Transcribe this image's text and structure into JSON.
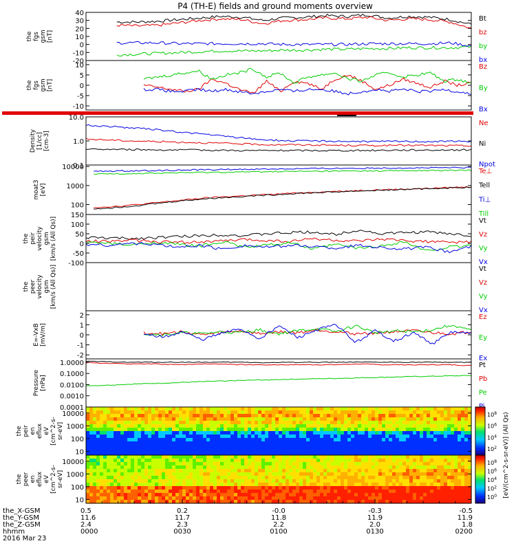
{
  "title": "P4 (TH-E) fields and ground moments overview",
  "date_label": "2016 Mar 23",
  "colors": {
    "black": "#000000",
    "red": "#e00000",
    "green": "#00cc00",
    "blue": "#0000e0"
  },
  "colorbar": {
    "label": "[eV/(cm^2-s-sr-eV)] (All Qs)",
    "upper_ticks": [
      "10^8",
      "10^6",
      "10^4",
      "10^2"
    ],
    "lower_ticks": [
      "10^8",
      "10^6",
      "10^4",
      "10^2",
      "10^0"
    ]
  },
  "xaxis": {
    "time_ticks": [
      "0000",
      "0030",
      "0100",
      "0130",
      "0200"
    ],
    "row_labels": [
      "the_X-GSM",
      "the_Y-GSM",
      "the_Z-GSM",
      "hhmm"
    ],
    "rows": [
      [
        "0.5",
        "0.2",
        "-0.0",
        "-0.3",
        "-0.5"
      ],
      [
        "11.6",
        "11.7",
        "11.8",
        "11.9",
        "11.9"
      ],
      [
        "2.4",
        "2.3",
        "2.2",
        "2.0",
        "1.8"
      ],
      [
        "0000",
        "0030",
        "0100",
        "0130",
        "0200"
      ]
    ]
  },
  "chart_data": [
    {
      "type": "line",
      "ylabel": [
        "the",
        "fgs",
        "gsm",
        "[nT]"
      ],
      "ylim": [
        -20,
        40
      ],
      "ticks": [
        "40",
        "30",
        "20",
        "10",
        "0",
        "-10",
        "-20"
      ],
      "tick_values": [
        40,
        30,
        20,
        10,
        0,
        -10,
        -20
      ],
      "series": [
        {
          "name": "Bt",
          "color": "black",
          "values": [
            28,
            28,
            29,
            31,
            33,
            35,
            34,
            30,
            33,
            34,
            36,
            35,
            37,
            33,
            35,
            34,
            31,
            25
          ]
        },
        {
          "name": "bz",
          "color": "red",
          "values": [
            24,
            23,
            24,
            27,
            30,
            32,
            31,
            26,
            30,
            31,
            33,
            32,
            34,
            30,
            32,
            31,
            28,
            20
          ]
        },
        {
          "name": "by",
          "color": "green",
          "values": [
            -13,
            -12,
            -11,
            -10,
            -9,
            -8,
            -8,
            -8,
            -7,
            -7,
            -6,
            -6,
            -5,
            -5,
            -4,
            -4,
            -4,
            -3
          ]
        },
        {
          "name": "bx",
          "color": "blue",
          "values": [
            2,
            2,
            2,
            1,
            1,
            1,
            1,
            1,
            0,
            0,
            0,
            0,
            1,
            1,
            1,
            1,
            2,
            -2
          ]
        }
      ],
      "series_start": 0.08
    },
    {
      "type": "line",
      "ylabel": [
        "the",
        "fgs",
        "gsm",
        "[nT]"
      ],
      "ylim": [
        -12,
        12
      ],
      "ticks": [
        "10",
        "5",
        "0",
        "-5",
        "-10"
      ],
      "tick_values": [
        10,
        5,
        0,
        -5,
        -10
      ],
      "series": [
        {
          "name": "Bz",
          "color": "red",
          "values": [
            0,
            -1,
            -2,
            -3,
            -2,
            3,
            1,
            -2,
            -4,
            2,
            -3,
            2,
            1,
            -2,
            3,
            5,
            2,
            -2,
            0,
            3,
            1,
            -1,
            2,
            0,
            1
          ]
        },
        {
          "name": "By",
          "color": "green",
          "values": [
            3,
            4,
            5,
            6,
            7,
            3,
            5,
            6,
            8,
            4,
            6,
            1,
            4,
            5,
            6,
            3,
            2,
            5,
            6,
            4,
            5,
            6,
            2,
            3,
            1
          ]
        },
        {
          "name": "Bx",
          "color": "blue",
          "values": [
            -2,
            -2,
            -3,
            -3,
            -2,
            -3,
            -2,
            -3,
            -4,
            -3,
            -2,
            -3,
            -2,
            -2,
            -3,
            -4,
            -3,
            -2,
            -3,
            -2,
            -3,
            -3,
            -2,
            -3,
            -4
          ]
        }
      ],
      "series_start": 0.15
    },
    {
      "type": "line",
      "ylabel": [
        "Density",
        "[1/cc]",
        "[cm-3]"
      ],
      "ylim": [
        0.1,
        10
      ],
      "log": true,
      "ticks": [
        "10.0",
        "1.0",
        "0.1"
      ],
      "tick_values": [
        10,
        1,
        0.1
      ],
      "series": [
        {
          "name": "Ne",
          "color": "red",
          "values": [
            1.2,
            1.1,
            1.0,
            0.95,
            0.9,
            0.85,
            0.8,
            0.75,
            0.7,
            0.7,
            0.68,
            0.66,
            0.65,
            0.65,
            0.66,
            0.65,
            0.64,
            0.63
          ]
        },
        {
          "name": "Ni",
          "color": "black",
          "values": [
            0.45,
            0.45,
            0.44,
            0.43,
            0.42,
            0.42,
            0.41,
            0.4,
            0.4,
            0.4,
            0.4,
            0.4,
            0.4,
            0.41,
            0.42,
            0.42,
            0.42,
            0.43
          ]
        },
        {
          "name": "Npot",
          "color": "blue",
          "values": [
            4.5,
            4.0,
            3.5,
            3.0,
            2.4,
            2.0,
            1.6,
            1.3,
            1.1,
            1.0,
            1.0,
            0.98,
            0.95,
            0.95,
            0.96,
            0.95,
            0.96,
            0.97
          ]
        }
      ],
      "series_start": 0.0
    },
    {
      "type": "line",
      "ylabel": [
        "moat3",
        "[eV]"
      ],
      "ylim": [
        30,
        12000
      ],
      "log": true,
      "ticks": [
        "10000",
        "1000",
        "100"
      ],
      "tick_values": [
        10000,
        1000,
        100
      ],
      "series": [
        {
          "name": "Te⊥",
          "color": "red",
          "values": [
            70,
            80,
            100,
            130,
            170,
            220,
            260,
            300,
            340,
            400,
            450,
            500,
            550,
            600,
            650,
            700,
            780,
            850
          ]
        },
        {
          "name": "Tell",
          "color": "black",
          "values": [
            60,
            70,
            90,
            120,
            160,
            200,
            240,
            280,
            320,
            380,
            420,
            470,
            520,
            570,
            620,
            680,
            750,
            800
          ]
        },
        {
          "name": "Ti⊥",
          "color": "blue",
          "values": [
            5500,
            5800,
            6000,
            6200,
            6500,
            6800,
            7000,
            7200,
            7400,
            7600,
            7800,
            8000,
            8200,
            8300,
            8400,
            8500,
            8600,
            8700
          ]
        },
        {
          "name": "Till",
          "color": "green",
          "values": [
            4000,
            4200,
            4300,
            4500,
            4700,
            4900,
            5000,
            5200,
            5400,
            5500,
            5600,
            5700,
            5800,
            5900,
            6000,
            6100,
            6200,
            6300
          ]
        }
      ],
      "series_start": 0.02
    },
    {
      "type": "line",
      "ylabel": [
        "the",
        "peir",
        "velocity",
        "gsm",
        "[km/s (All Qs)]"
      ],
      "ylim": [
        -100,
        150
      ],
      "ticks": [
        "150",
        "100",
        "50",
        "0",
        "-50",
        "-100"
      ],
      "tick_values": [
        150,
        100,
        50,
        0,
        -50,
        -100
      ],
      "series": [
        {
          "name": "Vt",
          "color": "black",
          "values": [
            30,
            28,
            25,
            30,
            35,
            40,
            45,
            40,
            50,
            55,
            60,
            45,
            70,
            50,
            55,
            60,
            50,
            40
          ]
        },
        {
          "name": "Vz",
          "color": "red",
          "values": [
            10,
            12,
            15,
            10,
            5,
            8,
            12,
            20,
            15,
            10,
            25,
            15,
            10,
            20,
            15,
            10,
            5,
            8
          ]
        },
        {
          "name": "Vy",
          "color": "green",
          "values": [
            5,
            0,
            -10,
            5,
            -5,
            -15,
            10,
            -20,
            -10,
            5,
            -30,
            -5,
            -25,
            -15,
            10,
            -40,
            -20,
            -10
          ]
        },
        {
          "name": "Vx",
          "color": "blue",
          "values": [
            -5,
            -10,
            0,
            -5,
            -20,
            -10,
            -30,
            -10,
            -20,
            -10,
            -15,
            -25,
            -10,
            -20,
            -30,
            -20,
            -45,
            -15
          ]
        }
      ],
      "series_start": 0.0
    },
    {
      "type": "line",
      "ylabel": [
        "the",
        "peer",
        "velocity",
        "gsm",
        "[km/s (All Qs)]"
      ],
      "ylim": [
        -1,
        1
      ],
      "ticks": [],
      "tick_values": [],
      "series": [
        {
          "name": "Vt",
          "color": "black",
          "values": []
        },
        {
          "name": "Vz",
          "color": "red",
          "values": []
        },
        {
          "name": "Vy",
          "color": "green",
          "values": []
        },
        {
          "name": "Vx",
          "color": "blue",
          "values": []
        }
      ],
      "series_start": 0.0
    },
    {
      "type": "line",
      "ylabel": [
        "E=-VxB",
        "[mV/m]"
      ],
      "ylim": [
        -2.4,
        2.4
      ],
      "ticks": [
        "2",
        "1",
        "0",
        "-1",
        "-2"
      ],
      "tick_values": [
        2,
        1,
        0,
        -1,
        -2
      ],
      "series": [
        {
          "name": "Ez",
          "color": "red",
          "values": [
            0.2,
            0.1,
            0.3,
            0.0,
            0.2,
            0.4,
            0.1,
            0.3,
            0.2,
            0.5,
            0.3,
            0.1,
            0.2,
            0.3,
            0.4,
            0.2,
            0.1,
            0.3
          ]
        },
        {
          "name": "Ey",
          "color": "green",
          "values": [
            0.1,
            0.0,
            0.2,
            0.1,
            0.3,
            0.2,
            0.5,
            0.1,
            0.4,
            0.6,
            0.3,
            0.9,
            0.2,
            0.4,
            0.3,
            0.5,
            1.0,
            0.4
          ]
        },
        {
          "name": "Ex",
          "color": "blue",
          "values": [
            0.0,
            -0.2,
            0.3,
            -0.5,
            0.1,
            0.6,
            -0.4,
            0.9,
            -0.3,
            0.5,
            1.0,
            -0.8,
            0.4,
            -0.6,
            0.2,
            -0.9,
            0.3,
            0.1
          ]
        }
      ],
      "series_start": 0.15
    },
    {
      "type": "line",
      "ylabel": [
        "Pressure",
        "[nPa]"
      ],
      "ylim": [
        0.0001,
        2
      ],
      "log": true,
      "ticks": [
        "1.0000",
        "0.1000",
        "0.0100",
        "0.0010",
        "0.0001"
      ],
      "tick_values": [
        1,
        0.1,
        0.01,
        0.001,
        0.0001
      ],
      "series": [
        {
          "name": "Pt",
          "color": "black",
          "values": [
            1.2,
            1.1,
            1.0,
            1.0,
            1.0,
            1.0,
            1.0,
            1.0,
            0.9,
            1.0,
            1.0,
            1.0,
            1.0,
            1.0,
            1.0,
            1.0,
            1.0,
            1.0
          ]
        },
        {
          "name": "Pb",
          "color": "red",
          "values": [
            0.9,
            0.8,
            0.7,
            0.7,
            0.6,
            0.7,
            0.7,
            0.6,
            0.6,
            0.6,
            0.6,
            0.6,
            0.7,
            0.6,
            0.6,
            0.6,
            0.6,
            0.5
          ]
        },
        {
          "name": "Pe",
          "color": "green",
          "values": [
            0.008,
            0.009,
            0.011,
            0.013,
            0.015,
            0.018,
            0.021,
            0.024,
            0.027,
            0.03,
            0.033,
            0.036,
            0.04,
            0.045,
            0.05,
            0.055,
            0.06,
            0.065
          ]
        },
        {
          "name": "Pi",
          "color": "blue",
          "values": []
        }
      ],
      "series_start": 0.0
    },
    {
      "type": "heatmap",
      "ylabel": [
        "the",
        "peir",
        "en",
        "eflux",
        "eV",
        "[cm^2-s-",
        "sr-eV]"
      ],
      "ticks": [
        "10000",
        "1000",
        "100",
        "10"
      ],
      "tick_values": [
        10000,
        1000,
        100,
        10
      ],
      "ylim": [
        5,
        30000
      ],
      "log": true
    },
    {
      "type": "heatmap",
      "ylabel": [
        "the",
        "peer",
        "en",
        "eflux",
        "eV",
        "[cm^2-s-",
        "sr-eV]"
      ],
      "ticks": [
        "10000",
        "1000",
        "100",
        "10"
      ],
      "tick_values": [
        10000,
        1000,
        100,
        10
      ],
      "ylim": [
        5,
        30000
      ],
      "log": true
    }
  ]
}
